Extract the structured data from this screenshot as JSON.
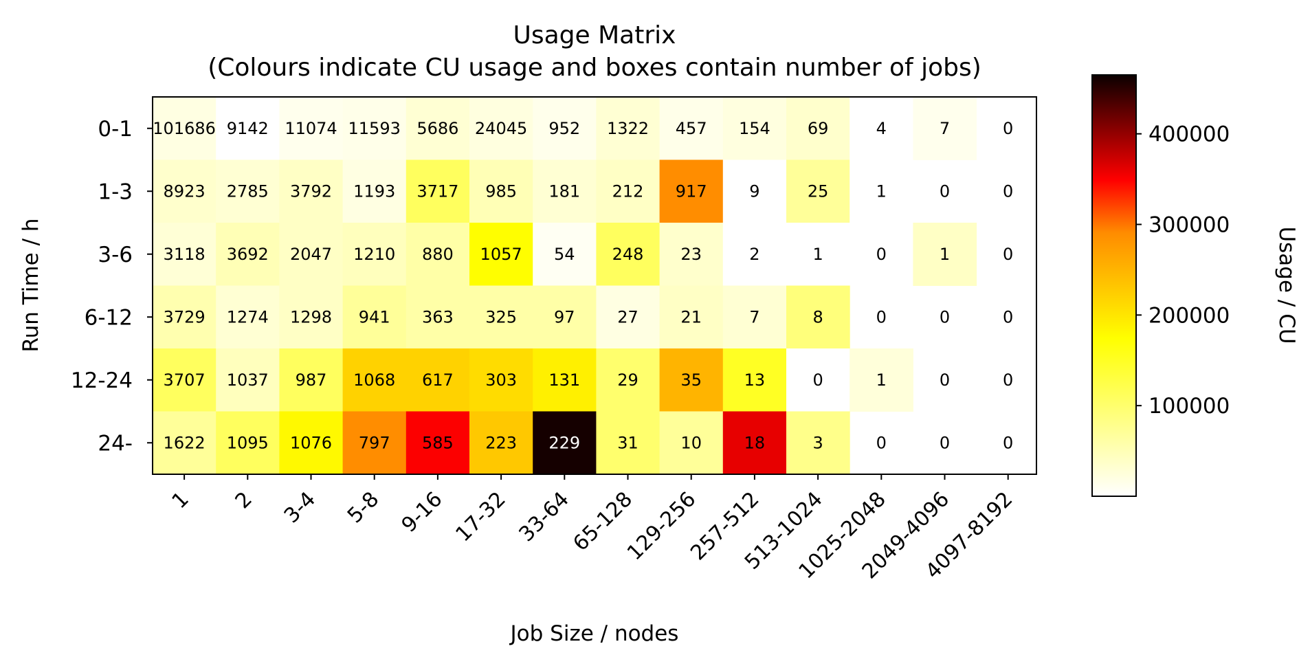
{
  "chart_data": {
    "type": "heatmap",
    "title": "Usage Matrix",
    "subtitle": "(Colours indicate CU usage and boxes contain number of jobs)",
    "xlabel": "Job Size / nodes",
    "ylabel": "Run Time / h",
    "x_categories": [
      "1",
      "2",
      "3-4",
      "5-8",
      "9-16",
      "17-32",
      "33-64",
      "65-128",
      "129-256",
      "257-512",
      "513-1024",
      "1025-2048",
      "2049-4096",
      "4097-8192"
    ],
    "y_categories": [
      "0-1",
      "1-3",
      "3-6",
      "6-12",
      "12-24",
      "24-"
    ],
    "job_counts": [
      [
        101686,
        9142,
        11074,
        11593,
        5686,
        24045,
        952,
        1322,
        457,
        154,
        69,
        4,
        7,
        0
      ],
      [
        8923,
        2785,
        3792,
        1193,
        3717,
        985,
        181,
        212,
        917,
        9,
        25,
        1,
        0,
        0
      ],
      [
        3118,
        3692,
        2047,
        1210,
        880,
        1057,
        54,
        248,
        23,
        2,
        1,
        0,
        1,
        0
      ],
      [
        3729,
        1274,
        1298,
        941,
        363,
        325,
        97,
        27,
        21,
        7,
        8,
        0,
        0,
        0
      ],
      [
        3707,
        1037,
        987,
        1068,
        617,
        303,
        131,
        29,
        35,
        13,
        0,
        1,
        0,
        0
      ],
      [
        1622,
        1095,
        1076,
        797,
        585,
        223,
        229,
        31,
        10,
        18,
        3,
        0,
        0,
        0
      ]
    ],
    "usage_cu": [
      [
        20000,
        0,
        12000,
        15000,
        30000,
        22000,
        14000,
        30000,
        15000,
        22000,
        35000,
        0,
        12000,
        null
      ],
      [
        35000,
        30000,
        40000,
        20000,
        110000,
        50000,
        30000,
        40000,
        290000,
        0,
        70000,
        0,
        null,
        null
      ],
      [
        28000,
        50000,
        40000,
        45000,
        60000,
        175000,
        8000,
        110000,
        35000,
        0,
        0,
        null,
        40000,
        null
      ],
      [
        55000,
        30000,
        40000,
        70000,
        60000,
        60000,
        60000,
        20000,
        40000,
        30000,
        90000,
        null,
        null,
        null
      ],
      [
        110000,
        45000,
        110000,
        220000,
        220000,
        210000,
        190000,
        100000,
        250000,
        150000,
        0,
        25000,
        null,
        null
      ],
      [
        70000,
        110000,
        180000,
        290000,
        350000,
        230000,
        460000,
        100000,
        70000,
        360000,
        80000,
        null,
        null,
        null
      ]
    ],
    "colorbar": {
      "label": "Usage / CU",
      "range": [
        0,
        465000
      ],
      "ticks": [
        100000,
        200000,
        300000,
        400000
      ],
      "tick_labels": [
        "100000",
        "200000",
        "300000",
        "400000"
      ],
      "colormap": "hot_r"
    }
  }
}
